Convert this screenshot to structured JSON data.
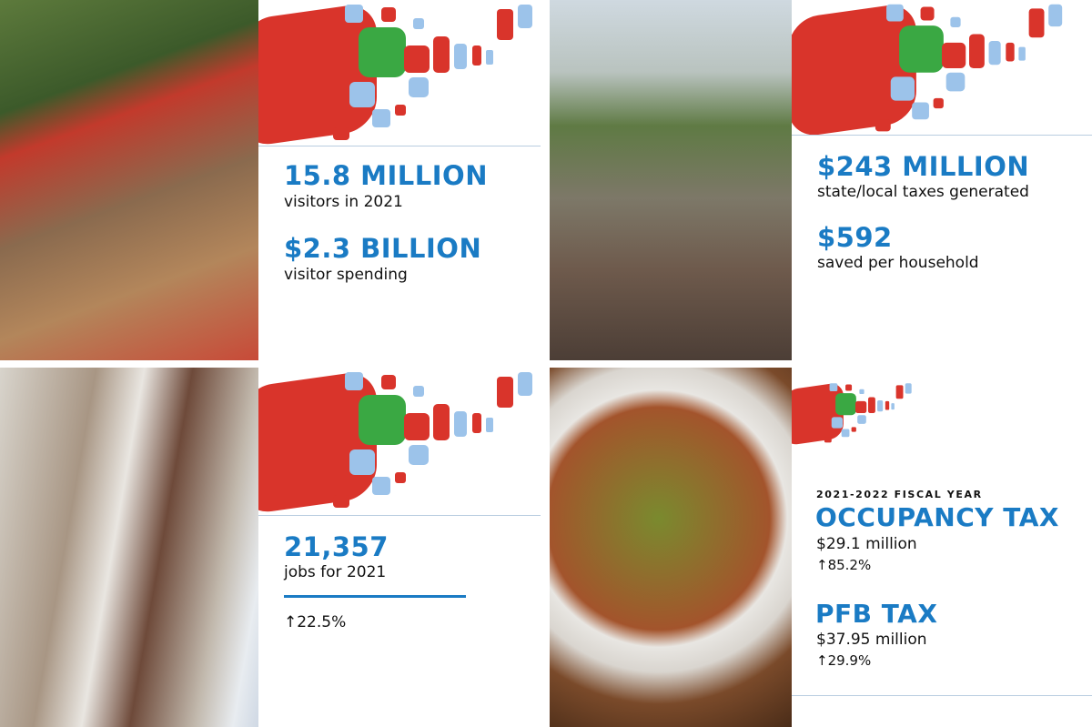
{
  "colors": {
    "accent_blue": "#1a7bc4",
    "logo_red": "#d9342b",
    "logo_green": "#3aa843",
    "logo_light_blue": "#9cc3ea"
  },
  "q1": {
    "stat1_value": "15.8 MILLION",
    "stat1_label": "visitors in 2021",
    "stat2_value": "$2.3 BILLION",
    "stat2_label": "visitor spending"
  },
  "q2": {
    "stat1_value": "$243 MILLION",
    "stat1_label": "state/local taxes generated",
    "stat2_value": "$592",
    "stat2_label": "saved per household"
  },
  "q3": {
    "stat1_value": "21,357",
    "stat1_label": "jobs for 2021",
    "change": "↑22.5%"
  },
  "q4": {
    "kicker": "2021-2022 FISCAL YEAR",
    "tax1_title": "OCCUPANCY TAX",
    "tax1_amount": "$29.1 million",
    "tax1_change": "↑85.2%",
    "tax2_title": "PFB TAX",
    "tax2_amount": "$37.95 million",
    "tax2_change": "↑29.9%"
  }
}
